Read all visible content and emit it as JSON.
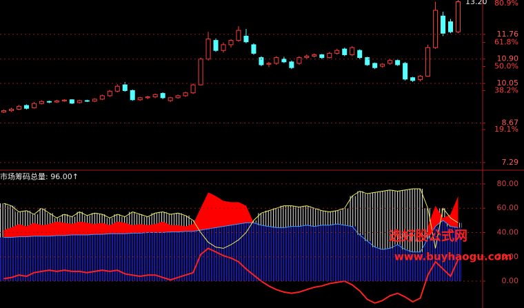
{
  "chart_data": [
    {
      "type": "candlestick",
      "annotation": "13.20",
      "up_color": "#ff3c3c",
      "down_color": "#54ffff",
      "candles": [
        [
          9.05,
          9.14,
          9.02,
          9.1
        ],
        [
          9.1,
          9.2,
          9.06,
          9.15
        ],
        [
          9.15,
          9.3,
          9.12,
          9.25
        ],
        [
          9.28,
          9.32,
          9.14,
          9.18
        ],
        [
          9.2,
          9.4,
          9.18,
          9.35
        ],
        [
          9.35,
          9.46,
          9.32,
          9.42
        ],
        [
          9.42,
          9.45,
          9.36,
          9.4
        ],
        [
          9.4,
          9.48,
          9.37,
          9.44
        ],
        [
          9.44,
          9.5,
          9.41,
          9.47
        ],
        [
          9.48,
          9.5,
          9.33,
          9.36
        ],
        [
          9.38,
          9.48,
          9.35,
          9.45
        ],
        [
          9.45,
          9.48,
          9.4,
          9.43
        ],
        [
          9.43,
          9.53,
          9.4,
          9.5
        ],
        [
          9.5,
          9.66,
          9.47,
          9.62
        ],
        [
          9.62,
          9.82,
          9.58,
          9.78
        ],
        [
          9.78,
          10.02,
          9.74,
          9.95
        ],
        [
          10.0,
          10.1,
          9.76,
          9.8
        ],
        [
          9.8,
          9.84,
          9.44,
          9.48
        ],
        [
          9.48,
          9.58,
          9.44,
          9.55
        ],
        [
          9.55,
          9.62,
          9.5,
          9.58
        ],
        [
          9.58,
          9.7,
          9.54,
          9.66
        ],
        [
          9.7,
          9.74,
          9.5,
          9.55
        ],
        [
          9.45,
          9.58,
          9.4,
          9.55
        ],
        [
          9.55,
          9.66,
          9.52,
          9.62
        ],
        [
          9.62,
          9.76,
          9.58,
          9.72
        ],
        [
          9.72,
          10.05,
          9.68,
          10.0
        ],
        [
          10.0,
          10.95,
          9.98,
          10.9
        ],
        [
          10.9,
          11.85,
          10.85,
          11.6
        ],
        [
          11.55,
          11.62,
          11.15,
          11.2
        ],
        [
          11.2,
          11.48,
          11.12,
          11.4
        ],
        [
          11.4,
          11.6,
          11.3,
          11.55
        ],
        [
          11.55,
          12.05,
          11.5,
          11.9
        ],
        [
          11.7,
          11.95,
          11.45,
          11.5
        ],
        [
          11.4,
          11.45,
          11.05,
          11.1
        ],
        [
          10.95,
          11.0,
          10.65,
          10.7
        ],
        [
          10.72,
          10.8,
          10.62,
          10.75
        ],
        [
          10.75,
          11.0,
          10.7,
          10.95
        ],
        [
          10.9,
          10.98,
          10.76,
          10.8
        ],
        [
          10.8,
          10.85,
          10.55,
          10.6
        ],
        [
          10.75,
          11.0,
          10.7,
          10.95
        ],
        [
          10.95,
          11.06,
          10.9,
          11.0
        ],
        [
          11.0,
          11.1,
          10.95,
          11.05
        ],
        [
          11.05,
          11.08,
          10.9,
          10.95
        ],
        [
          10.95,
          11.15,
          10.92,
          11.1
        ],
        [
          11.1,
          11.26,
          11.05,
          11.2
        ],
        [
          11.25,
          11.3,
          11.0,
          11.05
        ],
        [
          11.05,
          11.35,
          11.0,
          11.3
        ],
        [
          11.2,
          11.24,
          10.9,
          10.95
        ],
        [
          10.95,
          10.98,
          10.66,
          10.7
        ],
        [
          10.75,
          10.78,
          10.55,
          10.6
        ],
        [
          10.65,
          10.76,
          10.6,
          10.72
        ],
        [
          10.75,
          10.9,
          10.7,
          10.85
        ],
        [
          10.85,
          10.88,
          10.66,
          10.7
        ],
        [
          10.75,
          10.8,
          10.15,
          10.2
        ],
        [
          10.25,
          10.28,
          10.1,
          10.15
        ],
        [
          10.18,
          10.34,
          10.12,
          10.3
        ],
        [
          10.3,
          11.4,
          10.28,
          11.3
        ],
        [
          11.3,
          12.9,
          11.25,
          12.6
        ],
        [
          12.4,
          12.55,
          11.7,
          11.8
        ],
        [
          12.2,
          12.3,
          11.8,
          11.85
        ],
        [
          11.85,
          13.2,
          11.8,
          12.9
        ]
      ],
      "ylim": [
        7.07,
        12.96
      ],
      "yticks": [
        11.76,
        {
          "value": 10.9,
          "label": "10.90"
        },
        10.05,
        8.67,
        7.29
      ],
      "y2lim": [
        -0.15,
        82.59
      ],
      "y2ticks": [
        {
          "value": 80.9,
          "label": "80.9%"
        },
        {
          "value": 61.8,
          "label": "61.8%"
        },
        {
          "value": 50,
          "label": "50.0%"
        },
        {
          "value": 38.2,
          "label": "38.2%"
        },
        {
          "value": 19.1,
          "label": "19.1%"
        }
      ],
      "grid": true
    },
    {
      "type": "indicator",
      "title": "市场筹码总量: 96.00↑",
      "series": [
        {
          "color": "#3c9cff",
          "values": [
            36,
            36,
            36.5,
            36.5,
            37,
            37,
            37,
            37.5,
            37.5,
            38,
            38,
            38,
            38.5,
            38.5,
            39,
            39,
            39,
            39.5,
            39.5,
            40,
            40,
            40,
            40.5,
            40.5,
            41,
            41,
            42,
            43,
            44,
            45,
            46,
            47,
            48,
            48,
            46,
            45,
            44,
            44,
            45,
            45,
            46,
            45,
            46,
            46,
            47,
            46,
            45,
            38,
            33,
            28,
            26,
            27,
            30,
            26,
            24,
            24,
            35,
            45,
            50,
            45,
            44
          ]
        },
        {
          "color": "#f0f060",
          "values": [
            64,
            62,
            57,
            58,
            55,
            60,
            56,
            52,
            55,
            53,
            57,
            54,
            56,
            55,
            52,
            55,
            53,
            57,
            55,
            53,
            56,
            57,
            55,
            56,
            54,
            50,
            40,
            32,
            28,
            27,
            30,
            34,
            40,
            50,
            56,
            58,
            60,
            62,
            62,
            61,
            62,
            60,
            58,
            57,
            58,
            60,
            70,
            74,
            72,
            73,
            74,
            75,
            74,
            75,
            76,
            76,
            60,
            27,
            60,
            52,
            48
          ]
        },
        {
          "color": "#ff0000",
          "values": [
            42,
            44,
            47,
            45,
            48,
            46,
            47,
            49,
            48,
            47,
            49,
            48,
            47,
            48,
            46,
            49,
            48,
            46,
            47,
            46,
            47,
            49,
            46,
            46,
            45,
            47,
            60,
            73,
            70,
            66,
            65,
            65,
            62,
            48,
            null,
            null,
            null,
            null,
            null,
            null,
            null,
            null,
            null,
            null,
            null,
            null,
            null,
            null,
            null,
            null,
            null,
            null,
            null,
            null,
            null,
            null,
            45,
            62,
            52,
            55,
            70
          ]
        },
        {
          "color": "#ff2020",
          "values": [
            2,
            3,
            5,
            4,
            7,
            8,
            9,
            8,
            9,
            8,
            8,
            7,
            8,
            9,
            8,
            9,
            6,
            5,
            4,
            5,
            5,
            3,
            1,
            3,
            5,
            7,
            22,
            27,
            24,
            21,
            19,
            16,
            10,
            5,
            0,
            -4,
            -7,
            -9,
            -10,
            -9,
            -7,
            -5,
            -4,
            -2,
            -1,
            0,
            -3,
            -8,
            -15,
            -18,
            -16,
            -12,
            -10,
            -13,
            -17,
            -14,
            5,
            16,
            10,
            4,
            18
          ]
        }
      ],
      "ylim": [
        -22.1,
        89.6
      ],
      "yticks": [
        {
          "value": 80,
          "label": "80.00"
        },
        {
          "value": 60,
          "label": "60.00"
        },
        {
          "value": 40,
          "label": "40.00"
        },
        {
          "value": 20,
          "label": "20.00"
        },
        {
          "value": 0,
          "label": "0.00"
        }
      ],
      "grid": true
    }
  ],
  "watermark": {
    "title": "选好股公式网",
    "url": "www.buyhaogu.com"
  }
}
